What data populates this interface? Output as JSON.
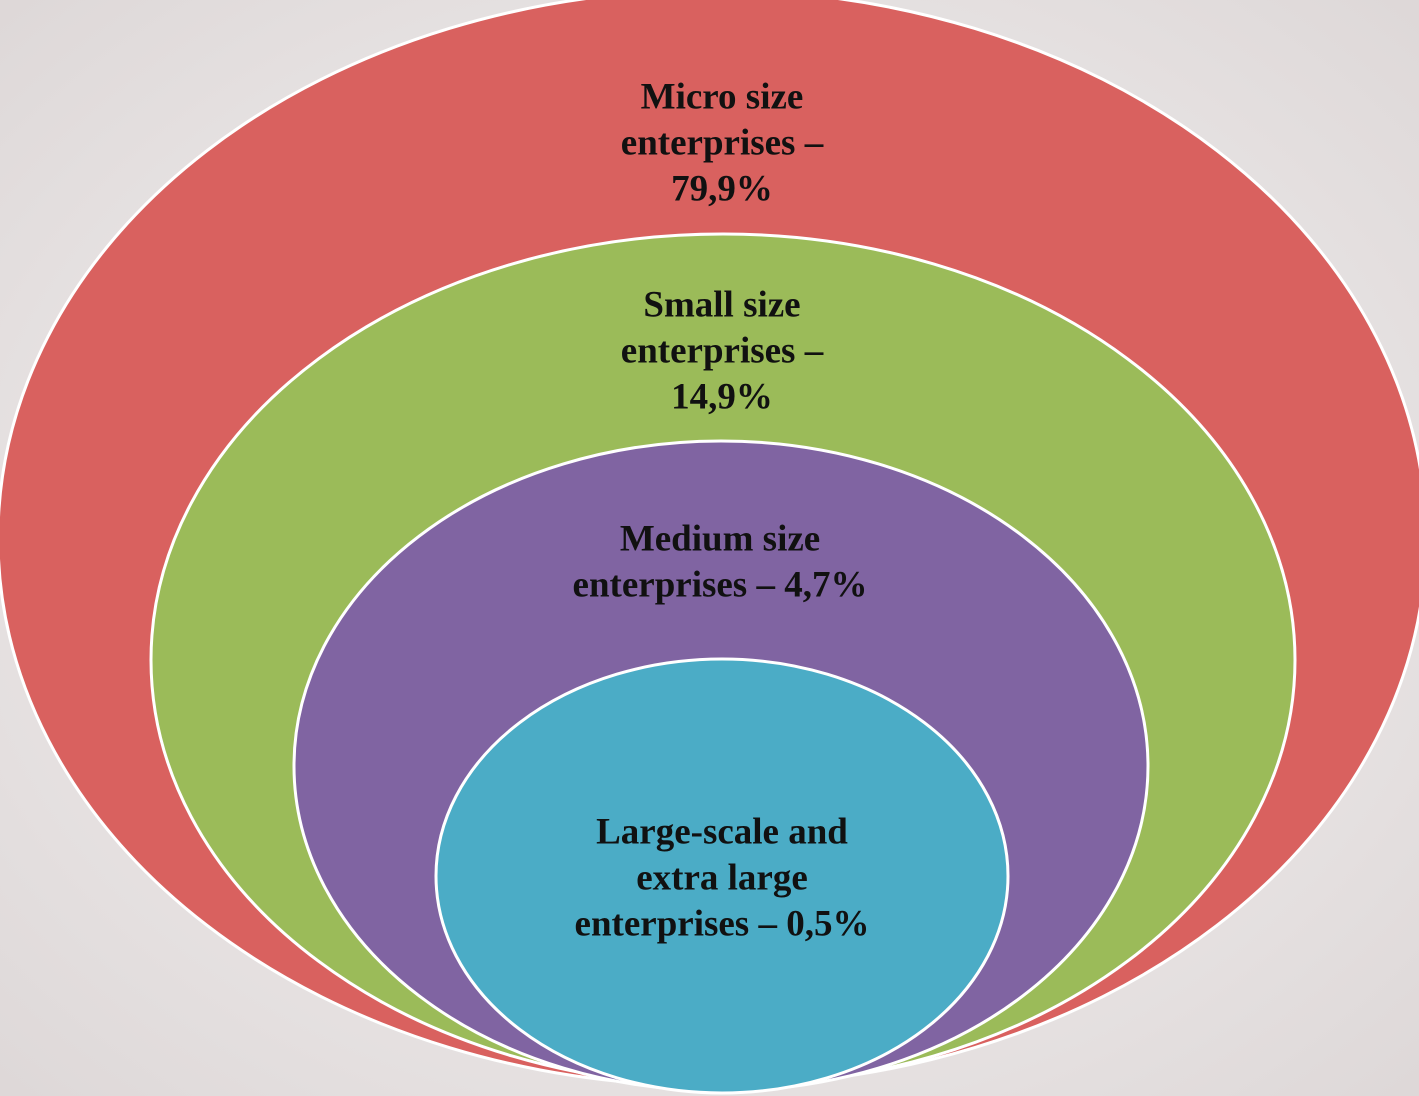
{
  "nodes": [
    {
      "lines": [
        "Micro size",
        "enterprises –",
        "79,9%"
      ]
    },
    {
      "lines": [
        "Small size",
        "enterprises –",
        "14,9%"
      ]
    },
    {
      "lines": [
        "Medium size",
        "enterprises – 4,7%"
      ]
    },
    {
      "lines": [
        "Large-scale and",
        "extra large",
        "enterprises – 0,5%"
      ]
    }
  ]
}
